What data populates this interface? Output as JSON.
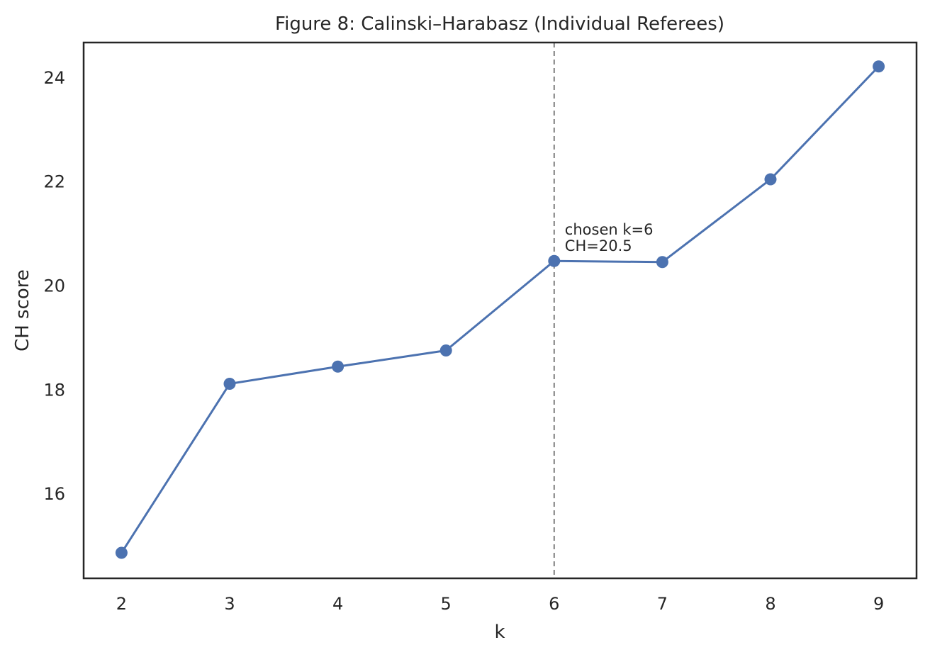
{
  "chart_data": {
    "type": "line",
    "title": "Figure 8: Calinski–Harabasz (Individual Referees)",
    "xlabel": "k",
    "ylabel": "CH score",
    "x": [
      2,
      3,
      4,
      5,
      6,
      7,
      8,
      9
    ],
    "series": [
      {
        "values": [
          14.87,
          18.12,
          18.45,
          18.76,
          20.48,
          20.46,
          22.05,
          24.22
        ]
      }
    ],
    "xticks": [
      "2",
      "3",
      "4",
      "5",
      "6",
      "7",
      "8",
      "9"
    ],
    "yticks": [
      "16",
      "18",
      "20",
      "22",
      "24"
    ],
    "xlim": [
      1.65,
      9.35
    ],
    "ylim": [
      14.38,
      24.68
    ],
    "grid": false,
    "legend": "none",
    "reference_line": {
      "orientation": "vertical",
      "x": 6,
      "style": "dashed"
    },
    "annotation": {
      "lines": [
        "chosen k=6",
        "CH=20.5"
      ],
      "x": 6,
      "y": 20.5
    },
    "colors": {
      "series": "#4c72b0",
      "reference_line": "#808080",
      "text": "#262626",
      "axes": "#262626"
    }
  }
}
